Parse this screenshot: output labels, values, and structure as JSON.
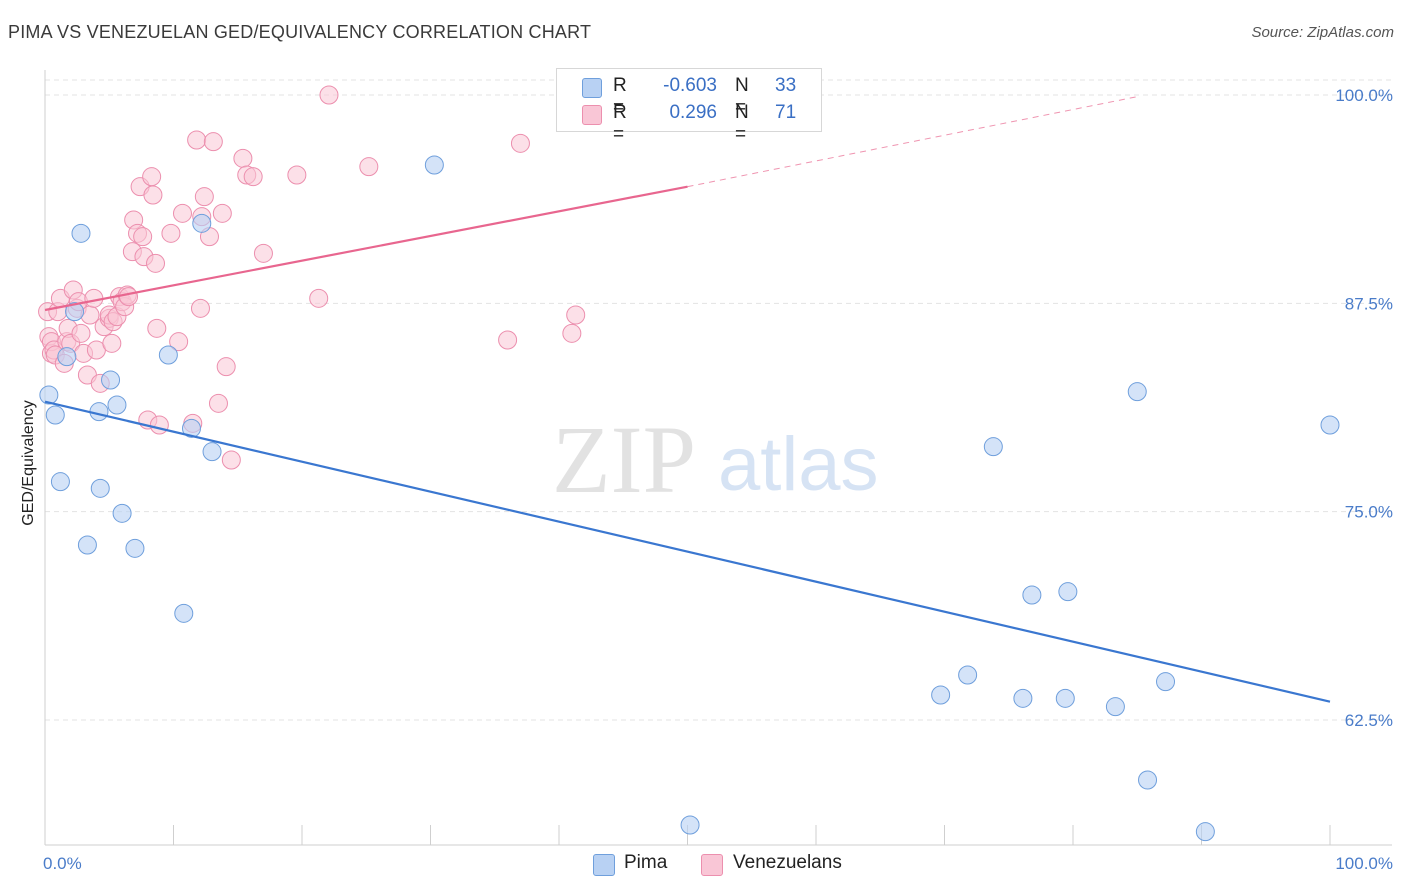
{
  "title": "PIMA VS VENEZUELAN GED/EQUIVALENCY CORRELATION CHART",
  "source": "Source: ZipAtlas.com",
  "watermark": {
    "zip": "ZIP",
    "atlas": "atlas"
  },
  "colors": {
    "pima_fill": "#b8d1f3",
    "pima_stroke": "#6f9fdc",
    "pima_line": "#3a77d0",
    "venez_fill": "#f9c6d6",
    "venez_stroke": "#ec8fae",
    "venez_line": "#e8668f",
    "tick_text": "#4a7cc9",
    "grid": "#e3e3e3"
  },
  "legend": {
    "rows": [
      {
        "r_label": "R =",
        "r_value": "-0.603",
        "n_label": "N =",
        "n_value": "33"
      },
      {
        "r_label": "R =",
        "r_value": "0.296",
        "n_label": "N =",
        "n_value": "71"
      }
    ]
  },
  "bottom_legend": [
    "Pima",
    "Venezuelans"
  ],
  "chart_data": {
    "type": "scatter",
    "title": "PIMA VS VENEZUELAN GED/EQUIVALENCY CORRELATION CHART",
    "xlabel": "",
    "ylabel": "GED/Equivalency",
    "xlim": [
      0,
      100
    ],
    "ylim": [
      55.0,
      101.5
    ],
    "x_tick_labels": [
      "0.0%",
      "100.0%"
    ],
    "y_ticks": [
      62.5,
      75.0,
      87.5,
      100.0
    ],
    "y_tick_labels": [
      "62.5%",
      "75.0%",
      "87.5%",
      "100.0%"
    ],
    "grid": true,
    "legend_position": "top-center",
    "series": [
      {
        "name": "Pima",
        "points": [
          [
            0.3,
            82.0
          ],
          [
            0.8,
            80.8
          ],
          [
            1.2,
            76.8
          ],
          [
            1.7,
            84.3
          ],
          [
            2.3,
            87.0
          ],
          [
            2.8,
            91.7
          ],
          [
            3.3,
            73.0
          ],
          [
            4.2,
            81.0
          ],
          [
            4.3,
            76.4
          ],
          [
            5.1,
            82.9
          ],
          [
            5.6,
            81.4
          ],
          [
            6.0,
            74.9
          ],
          [
            7.0,
            72.8
          ],
          [
            9.6,
            84.4
          ],
          [
            10.8,
            68.9
          ],
          [
            11.4,
            80.0
          ],
          [
            12.2,
            92.3
          ],
          [
            13.0,
            78.6
          ],
          [
            30.3,
            95.8
          ],
          [
            50.2,
            56.2
          ],
          [
            69.7,
            64.0
          ],
          [
            71.8,
            65.2
          ],
          [
            73.8,
            78.9
          ],
          [
            76.1,
            63.8
          ],
          [
            76.8,
            70.0
          ],
          [
            79.4,
            63.8
          ],
          [
            79.6,
            70.2
          ],
          [
            83.3,
            63.3
          ],
          [
            85.0,
            82.2
          ],
          [
            85.8,
            58.9
          ],
          [
            87.2,
            64.8
          ],
          [
            90.3,
            55.8
          ],
          [
            100.0,
            80.2
          ]
        ],
        "trend": {
          "x": [
            0,
            100
          ],
          "y": [
            81.6,
            63.6
          ]
        }
      },
      {
        "name": "Venezuelans",
        "points": [
          [
            0.2,
            87.0
          ],
          [
            0.3,
            85.5
          ],
          [
            0.5,
            84.5
          ],
          [
            0.5,
            85.2
          ],
          [
            0.7,
            84.7
          ],
          [
            0.8,
            84.4
          ],
          [
            1.0,
            87.0
          ],
          [
            1.2,
            87.8
          ],
          [
            1.5,
            83.9
          ],
          [
            1.7,
            85.2
          ],
          [
            1.8,
            86.0
          ],
          [
            2.0,
            85.1
          ],
          [
            2.2,
            88.3
          ],
          [
            2.5,
            87.2
          ],
          [
            2.6,
            87.6
          ],
          [
            2.8,
            85.7
          ],
          [
            3.0,
            84.5
          ],
          [
            3.3,
            83.2
          ],
          [
            3.5,
            86.8
          ],
          [
            3.8,
            87.8
          ],
          [
            4.0,
            84.7
          ],
          [
            4.3,
            82.7
          ],
          [
            4.6,
            86.1
          ],
          [
            5.0,
            86.6
          ],
          [
            5.0,
            86.8
          ],
          [
            5.2,
            85.1
          ],
          [
            5.3,
            86.4
          ],
          [
            5.6,
            86.7
          ],
          [
            5.8,
            87.9
          ],
          [
            6.0,
            87.6
          ],
          [
            6.2,
            87.3
          ],
          [
            6.4,
            88.0
          ],
          [
            6.5,
            87.9
          ],
          [
            6.8,
            90.6
          ],
          [
            6.9,
            92.5
          ],
          [
            7.2,
            91.7
          ],
          [
            7.4,
            94.5
          ],
          [
            7.6,
            91.5
          ],
          [
            7.7,
            90.3
          ],
          [
            8.0,
            80.5
          ],
          [
            8.3,
            95.1
          ],
          [
            8.4,
            94.0
          ],
          [
            8.6,
            89.9
          ],
          [
            8.7,
            86.0
          ],
          [
            8.9,
            80.2
          ],
          [
            9.8,
            91.7
          ],
          [
            10.4,
            85.2
          ],
          [
            10.7,
            92.9
          ],
          [
            11.5,
            80.3
          ],
          [
            11.8,
            97.3
          ],
          [
            12.1,
            87.2
          ],
          [
            12.2,
            92.7
          ],
          [
            12.4,
            93.9
          ],
          [
            12.8,
            91.5
          ],
          [
            13.1,
            97.2
          ],
          [
            13.5,
            81.5
          ],
          [
            13.8,
            92.9
          ],
          [
            14.1,
            83.7
          ],
          [
            14.5,
            78.1
          ],
          [
            15.4,
            96.2
          ],
          [
            15.7,
            95.2
          ],
          [
            16.2,
            95.1
          ],
          [
            17.0,
            90.5
          ],
          [
            19.6,
            95.2
          ],
          [
            21.3,
            87.8
          ],
          [
            22.1,
            100.0
          ],
          [
            25.2,
            95.7
          ],
          [
            36.0,
            85.3
          ],
          [
            37.0,
            97.1
          ],
          [
            41.0,
            85.7
          ],
          [
            41.3,
            86.8
          ]
        ],
        "trend": {
          "x": [
            0,
            50
          ],
          "y": [
            87.1,
            94.5
          ],
          "dashed_extension": {
            "x": [
              50,
              85
            ],
            "y": [
              94.5,
              99.9
            ]
          }
        }
      }
    ]
  }
}
